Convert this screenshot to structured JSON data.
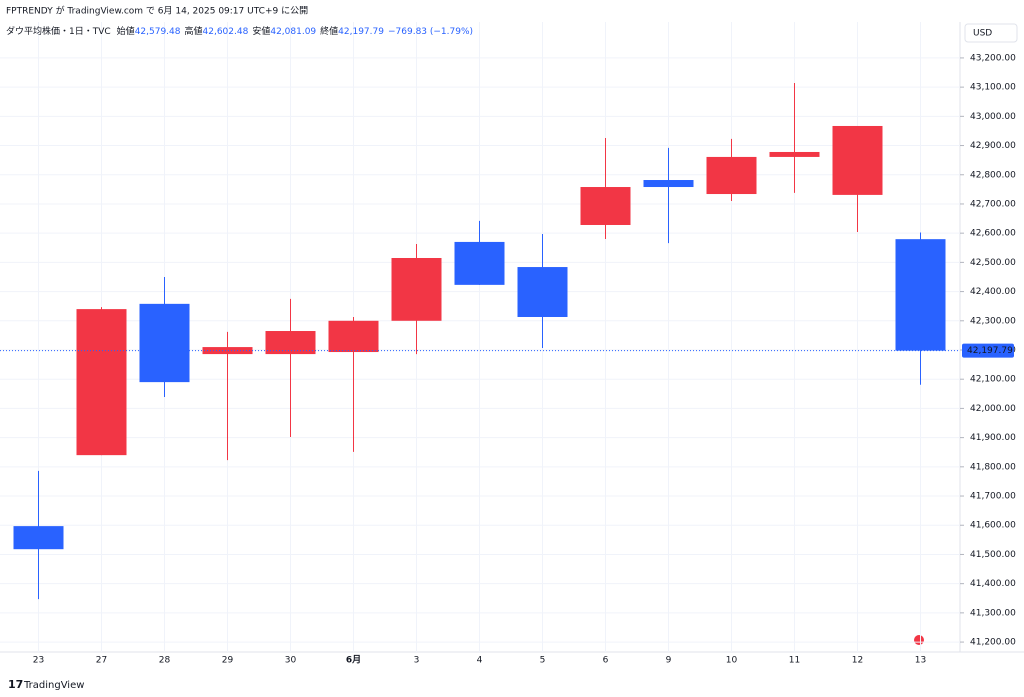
{
  "header": {
    "published": "FPTRENDY が TradingView.com で 6月 14, 2025 09:17 UTC+9 に公開"
  },
  "legend": {
    "symbol": "ダウ平均株価・1日・TVC",
    "items": [
      {
        "label": "始値",
        "value": "42,579.48"
      },
      {
        "label": "高値",
        "value": "42,602.48"
      },
      {
        "label": "安値",
        "value": "42,081.09"
      },
      {
        "label": "終値",
        "value": "42,197.79"
      }
    ],
    "change": "−769.83 (−1.79%)"
  },
  "footer": {
    "brand": "TradingView"
  },
  "chart_data": {
    "type": "candlestick",
    "currency": "USD",
    "categories": [
      "23",
      "27",
      "28",
      "29",
      "30",
      "6月",
      "3",
      "4",
      "5",
      "6",
      "9",
      "10",
      "11",
      "12",
      "13"
    ],
    "open": [
      41597,
      41840,
      42358,
      42186,
      42186,
      42193,
      42300,
      42570,
      42484,
      42628,
      42782,
      42734,
      42861,
      42731,
      42579.48
    ],
    "high": [
      41786,
      42347,
      42450,
      42262,
      42375,
      42313,
      42563,
      42642,
      42597,
      42926,
      42892,
      42923,
      43114,
      42967,
      42602.48
    ],
    "low": [
      41347,
      41840,
      42039,
      41823,
      41902,
      41851,
      42186,
      42423,
      42207,
      42580,
      42566,
      42710,
      42738,
      42604,
      42081.09
    ],
    "close": [
      41518,
      42340,
      42090,
      42210,
      42265,
      42300,
      42515,
      42423,
      42313,
      42758,
      42758,
      42861,
      42878,
      42967,
      42197.79
    ],
    "up_color": "#f23645",
    "down_color": "#2962ff",
    "last_price": {
      "value": 42197.79,
      "label": "42,197.79"
    },
    "ylim": [
      41166,
      43323
    ],
    "yticks": [
      {
        "value": 41200,
        "label": "41,200.00"
      },
      {
        "value": 41300,
        "label": "41,300.00"
      },
      {
        "value": 41400,
        "label": "41,400.00"
      },
      {
        "value": 41500,
        "label": "41,500.00"
      },
      {
        "value": 41600,
        "label": "41,600.00"
      },
      {
        "value": 41700,
        "label": "41,700.00"
      },
      {
        "value": 41800,
        "label": "41,800.00"
      },
      {
        "value": 41900,
        "label": "41,900.00"
      },
      {
        "value": 42000,
        "label": "42,000.00"
      },
      {
        "value": 42100,
        "label": "42,100.00"
      },
      {
        "value": 42200,
        "label": "42,200.00"
      },
      {
        "value": 42300,
        "label": "42,300.00"
      },
      {
        "value": 42400,
        "label": "42,400.00"
      },
      {
        "value": 42500,
        "label": "42,500.00"
      },
      {
        "value": 42600,
        "label": "42,600.00"
      },
      {
        "value": 42700,
        "label": "42,700.00"
      },
      {
        "value": 42800,
        "label": "42,800.00"
      },
      {
        "value": 42900,
        "label": "42,900.00"
      },
      {
        "value": 43000,
        "label": "43,000.00"
      },
      {
        "value": 43100,
        "label": "43,100.00"
      },
      {
        "value": 43200,
        "label": "43,200.00"
      }
    ],
    "grid": true
  }
}
